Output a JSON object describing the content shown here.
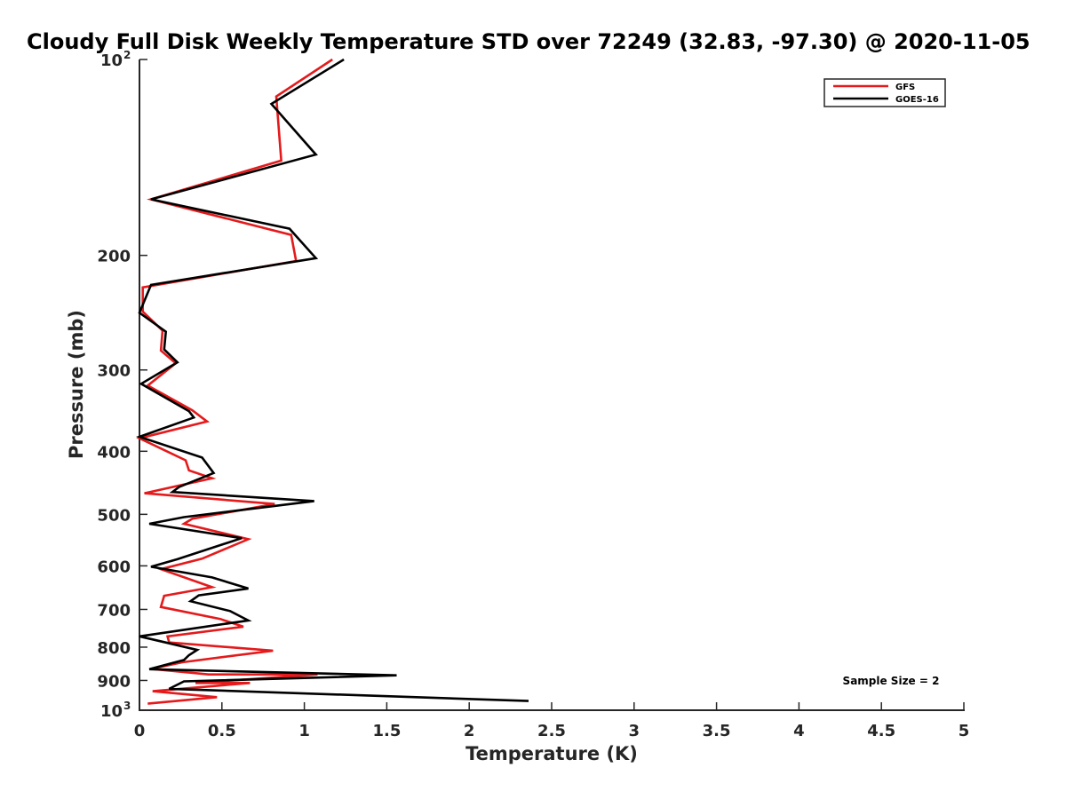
{
  "chart_data": {
    "type": "line",
    "title": "Cloudy Full Disk Weekly Temperature STD over 72249 (32.83, -97.30) @ 2020-11-05",
    "xlabel": "Temperature (K)",
    "ylabel": "Pressure (mb)",
    "xlim": [
      0,
      5
    ],
    "ylim": [
      100,
      1000
    ],
    "y_scale": "log",
    "y_reversed": true,
    "grid": false,
    "legend_position": "top-right",
    "xticks": [
      "0",
      "0.5",
      "1",
      "1.5",
      "2",
      "2.5",
      "3",
      "3.5",
      "4",
      "4.5",
      "5"
    ],
    "yticks": [
      {
        "value": 100,
        "label": "10",
        "sup": "2"
      },
      {
        "value": 200,
        "label": "200",
        "sup": ""
      },
      {
        "value": 300,
        "label": "300",
        "sup": ""
      },
      {
        "value": 400,
        "label": "400",
        "sup": ""
      },
      {
        "value": 500,
        "label": "500",
        "sup": ""
      },
      {
        "value": 600,
        "label": "600",
        "sup": ""
      },
      {
        "value": 700,
        "label": "700",
        "sup": ""
      },
      {
        "value": 800,
        "label": "800",
        "sup": ""
      },
      {
        "value": 900,
        "label": "900",
        "sup": ""
      },
      {
        "value": 1000,
        "label": "10",
        "sup": "3"
      }
    ],
    "annotation": "Sample Size = 2",
    "series": [
      {
        "name": "GFS",
        "color": "#e41a1c",
        "points": [
          [
            1.17,
            100
          ],
          [
            0.83,
            114
          ],
          [
            0.86,
            143
          ],
          [
            0.07,
            164
          ],
          [
            0.92,
            186
          ],
          [
            0.95,
            204
          ],
          [
            0.02,
            224
          ],
          [
            0.02,
            244
          ],
          [
            0.14,
            261
          ],
          [
            0.13,
            280
          ],
          [
            0.22,
            293
          ],
          [
            0.05,
            317
          ],
          [
            0.32,
            346
          ],
          [
            0.41,
            360
          ],
          [
            0.0,
            382
          ],
          [
            0.28,
            413
          ],
          [
            0.3,
            428
          ],
          [
            0.44,
            440
          ],
          [
            0.03,
            464
          ],
          [
            0.82,
            482
          ],
          [
            0.32,
            508
          ],
          [
            0.27,
            517
          ],
          [
            0.66,
            546
          ],
          [
            0.38,
            585
          ],
          [
            0.13,
            607
          ],
          [
            0.44,
            647
          ],
          [
            0.15,
            667
          ],
          [
            0.13,
            694
          ],
          [
            0.49,
            724
          ],
          [
            0.63,
            744
          ],
          [
            0.17,
            770
          ],
          [
            0.18,
            787
          ],
          [
            0.81,
            810
          ],
          [
            0.26,
            844
          ],
          [
            0.07,
            864
          ],
          [
            0.42,
            881
          ],
          [
            1.08,
            881
          ],
          [
            0.34,
            908
          ],
          [
            0.67,
            908
          ],
          [
            0.08,
            935
          ],
          [
            0.47,
            955
          ],
          [
            0.05,
            977
          ]
        ]
      },
      {
        "name": "GOES-16",
        "color": "#000000",
        "points": [
          [
            1.24,
            100
          ],
          [
            0.8,
            117
          ],
          [
            1.07,
            140
          ],
          [
            0.07,
            164
          ],
          [
            0.91,
            182
          ],
          [
            1.07,
            202
          ],
          [
            0.07,
            222
          ],
          [
            0.0,
            245
          ],
          [
            0.16,
            262
          ],
          [
            0.15,
            279
          ],
          [
            0.23,
            292
          ],
          [
            0.01,
            315
          ],
          [
            0.3,
            347
          ],
          [
            0.33,
            355
          ],
          [
            0.0,
            380
          ],
          [
            0.38,
            409
          ],
          [
            0.45,
            432
          ],
          [
            0.24,
            454
          ],
          [
            0.2,
            462
          ],
          [
            1.06,
            477
          ],
          [
            0.27,
            505
          ],
          [
            0.06,
            517
          ],
          [
            0.62,
            544
          ],
          [
            0.23,
            586
          ],
          [
            0.07,
            602
          ],
          [
            0.44,
            625
          ],
          [
            0.66,
            650
          ],
          [
            0.36,
            666
          ],
          [
            0.31,
            680
          ],
          [
            0.55,
            704
          ],
          [
            0.66,
            728
          ],
          [
            0.0,
            770
          ],
          [
            0.17,
            788
          ],
          [
            0.35,
            808
          ],
          [
            0.3,
            823
          ],
          [
            0.27,
            837
          ],
          [
            0.06,
            865
          ],
          [
            1.56,
            884
          ],
          [
            0.27,
            903
          ],
          [
            0.18,
            927
          ],
          [
            2.36,
            968
          ]
        ]
      }
    ]
  }
}
